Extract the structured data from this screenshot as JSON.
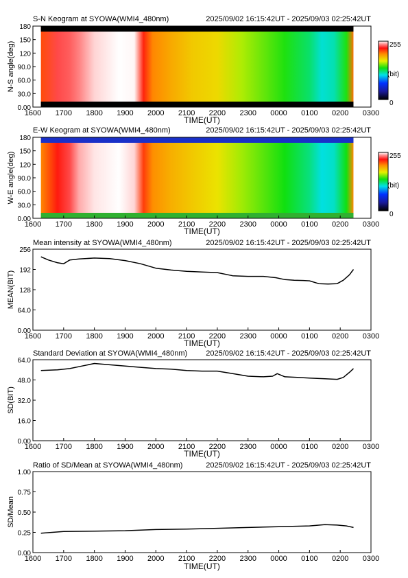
{
  "chart_data": [
    {
      "type": "heatmap",
      "title": "S-N Keogram at SYOWA(WMI4_480nm)",
      "time_range": "2025/09/02 16:15:42UT - 2025/09/03 02:25:42UT",
      "xlabel": "TIME(UT)",
      "ylabel": "N-S angle(deg)",
      "x_ticks": [
        "1600",
        "1700",
        "1800",
        "1900",
        "2000",
        "2100",
        "2200",
        "2300",
        "0000",
        "0100",
        "0200",
        "0300"
      ],
      "x_range_hours": [
        16,
        27
      ],
      "y_ticks": [
        "0.00",
        "30.0",
        "60.0",
        "90.0",
        "120",
        "150",
        "180"
      ],
      "ylim": [
        0,
        180
      ],
      "data_extent_hours": [
        16.26,
        26.43
      ],
      "colorbar": {
        "max_label": "255",
        "unit_label": "(bit)",
        "min_label": "0"
      },
      "profile_times_hours": [
        16.26,
        16.8,
        17.2,
        17.5,
        18.0,
        18.8,
        19.3,
        19.6,
        19.9,
        20.5,
        21.2,
        22.0,
        22.8,
        23.5,
        24.2,
        25.0,
        25.4,
        25.8,
        26.2,
        26.43
      ],
      "profile_levels": [
        212,
        232,
        235,
        240,
        250,
        255,
        254,
        220,
        200,
        190,
        180,
        175,
        160,
        150,
        140,
        125,
        110,
        115,
        140,
        205
      ]
    },
    {
      "type": "heatmap",
      "title": "E-W Keogram at SYOWA(WMI4_480nm)",
      "time_range": "2025/09/02 16:15:42UT - 2025/09/03 02:25:42UT",
      "xlabel": "TIME(UT)",
      "ylabel": "W-E angle(deg)",
      "x_ticks": [
        "1600",
        "1700",
        "1800",
        "1900",
        "2000",
        "2100",
        "2200",
        "2300",
        "0000",
        "0100",
        "0200",
        "0300"
      ],
      "x_range_hours": [
        16,
        27
      ],
      "y_ticks": [
        "0.00",
        "30.0",
        "60.0",
        "90.0",
        "120",
        "150",
        "180"
      ],
      "ylim": [
        0,
        180
      ],
      "data_extent_hours": [
        16.26,
        26.43
      ],
      "colorbar": {
        "max_label": "255",
        "unit_label": "(bit)",
        "min_label": "0"
      },
      "profile_times_hours": [
        16.26,
        16.8,
        17.2,
        17.5,
        18.0,
        18.8,
        19.3,
        19.6,
        19.9,
        20.5,
        21.2,
        22.0,
        22.8,
        23.5,
        24.2,
        25.0,
        25.4,
        25.8,
        26.2,
        26.43
      ],
      "profile_levels": [
        200,
        222,
        232,
        245,
        252,
        255,
        250,
        215,
        198,
        188,
        180,
        172,
        158,
        148,
        138,
        122,
        108,
        112,
        138,
        200
      ]
    },
    {
      "type": "line",
      "title": "Mean intensity at SYOWA(WMI4_480nm)",
      "time_range": "2025/09/02 16:15:42UT - 2025/09/03 02:25:42UT",
      "xlabel": "TIME(UT)",
      "ylabel": "MEAN(BIT)",
      "x_ticks": [
        "1600",
        "1700",
        "1800",
        "1900",
        "2000",
        "2100",
        "2200",
        "2300",
        "0000",
        "0100",
        "0200",
        "0300"
      ],
      "x_range_hours": [
        16,
        27
      ],
      "y_ticks": [
        "0.00",
        "64.0",
        "128",
        "192",
        "256"
      ],
      "ylim": [
        0,
        256
      ],
      "x": [
        16.26,
        16.5,
        16.8,
        17.0,
        17.2,
        17.5,
        18.0,
        18.5,
        19.0,
        19.5,
        20.0,
        20.5,
        21.0,
        21.5,
        22.0,
        22.5,
        23.0,
        23.5,
        23.9,
        24.2,
        24.5,
        24.8,
        25.0,
        25.3,
        25.6,
        25.9,
        26.1,
        26.3,
        26.43
      ],
      "y": [
        232,
        222,
        213,
        210,
        222,
        225,
        228,
        226,
        220,
        210,
        196,
        190,
        186,
        184,
        182,
        172,
        170,
        170,
        166,
        160,
        158,
        157,
        156,
        147,
        146,
        147,
        158,
        175,
        192
      ]
    },
    {
      "type": "line",
      "title": "Standard Deviation at SYOWA(WMI4_480nm)",
      "time_range": "2025/09/02 16:15:42UT - 2025/09/03 02:25:42UT",
      "xlabel": "TIME(UT)",
      "ylabel": "SD(BIT)",
      "x_ticks": [
        "1600",
        "1700",
        "1800",
        "1900",
        "2000",
        "2100",
        "2200",
        "2300",
        "0000",
        "0100",
        "0200",
        "0300"
      ],
      "x_range_hours": [
        16,
        27
      ],
      "y_ticks": [
        "0.00",
        "16.0",
        "32.0",
        "48.0",
        "64.0"
      ],
      "ylim": [
        0,
        64
      ],
      "x": [
        16.26,
        16.8,
        17.2,
        17.6,
        18.0,
        18.5,
        19.0,
        19.5,
        20.0,
        20.5,
        21.0,
        21.5,
        22.0,
        22.5,
        23.0,
        23.5,
        23.8,
        23.95,
        24.2,
        24.6,
        25.0,
        25.5,
        25.9,
        26.1,
        26.3,
        26.43
      ],
      "y": [
        55.5,
        56,
        57,
        59,
        61,
        60,
        59,
        58,
        57,
        56.5,
        55.5,
        55,
        55,
        53,
        51,
        50.5,
        51,
        53,
        50.5,
        50,
        49.5,
        49,
        48.5,
        50,
        54,
        57
      ]
    },
    {
      "type": "line",
      "title": "Ratio of SD/Mean at SYOWA(WMI4_480nm)",
      "time_range": "2025/09/02 16:15:42UT - 2025/09/03 02:25:42UT",
      "xlabel": "TIME(UT)",
      "ylabel": "SD/Mean",
      "x_ticks": [
        "1600",
        "1700",
        "1800",
        "1900",
        "2000",
        "2100",
        "2200",
        "2300",
        "0000",
        "0100",
        "0200",
        "0300"
      ],
      "x_range_hours": [
        16,
        27
      ],
      "y_ticks": [
        "0.00",
        "0.25",
        "0.50",
        "0.75",
        "1.00"
      ],
      "ylim": [
        0,
        1
      ],
      "x": [
        16.26,
        17.0,
        18.0,
        19.0,
        20.0,
        21.0,
        22.0,
        23.0,
        24.0,
        25.0,
        25.5,
        25.9,
        26.2,
        26.43
      ],
      "y": [
        0.24,
        0.26,
        0.265,
        0.27,
        0.285,
        0.29,
        0.3,
        0.31,
        0.32,
        0.33,
        0.345,
        0.34,
        0.33,
        0.31
      ]
    }
  ]
}
